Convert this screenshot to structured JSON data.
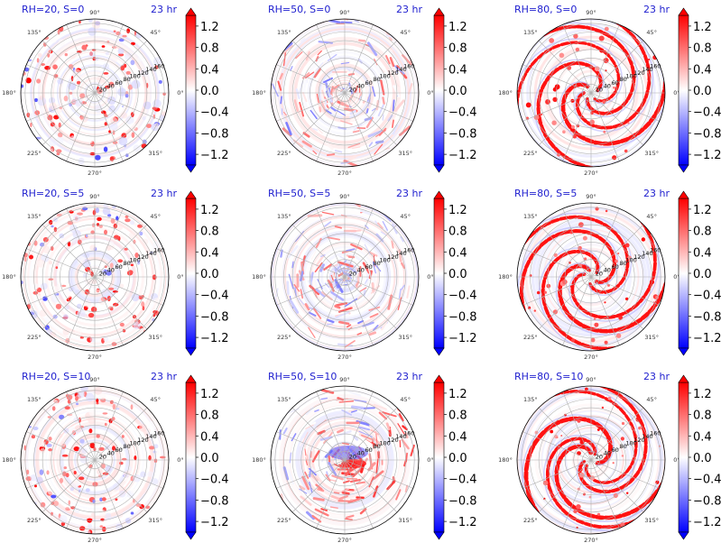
{
  "figure": {
    "label_color": "#0000cc",
    "colormap": [
      "#0000ff",
      "#ffffff",
      "#ff0000"
    ]
  },
  "chart_data": [
    {
      "type": "heatmap",
      "subtype": "polar",
      "left_title": "RH=20, S=0",
      "right_title": "23 hr",
      "pattern": "scattered",
      "theta_ticks": [
        "0°",
        "45°",
        "90°",
        "135°",
        "180°",
        "225°",
        "270°",
        "315°"
      ],
      "r_ticks": [
        "20",
        "40",
        "60",
        "80",
        "100",
        "120",
        "140",
        "160"
      ],
      "colorbar": {
        "ticks": [
          "1.2",
          "0.8",
          "0.4",
          "0.0",
          "−0.4",
          "−0.8",
          "−1.2"
        ],
        "range": [
          -1.4,
          1.4
        ],
        "extend": "both"
      }
    },
    {
      "type": "heatmap",
      "subtype": "polar",
      "left_title": "RH=50, S=0",
      "right_title": "23 hr",
      "pattern": "mixed",
      "theta_ticks": [
        "0°",
        "45°",
        "90°",
        "135°",
        "180°",
        "225°",
        "270°",
        "315°"
      ],
      "r_ticks": [
        "20",
        "40",
        "60",
        "80",
        "100",
        "120",
        "140",
        "160"
      ],
      "colorbar": {
        "ticks": [
          "1.2",
          "0.8",
          "0.4",
          "0.0",
          "−0.4",
          "−0.8",
          "−1.2"
        ],
        "range": [
          -1.4,
          1.4
        ],
        "extend": "both"
      }
    },
    {
      "type": "heatmap",
      "subtype": "polar",
      "left_title": "RH=80, S=0",
      "right_title": "23 hr",
      "pattern": "spiral",
      "theta_ticks": [
        "0°",
        "45°",
        "90°",
        "135°",
        "180°",
        "225°",
        "270°",
        "315°"
      ],
      "r_ticks": [
        "20",
        "40",
        "60",
        "80",
        "100",
        "120",
        "140",
        "160"
      ],
      "colorbar": {
        "ticks": [
          "1.2",
          "0.8",
          "0.4",
          "0.0",
          "−0.4",
          "−0.8",
          "−1.2"
        ],
        "range": [
          -1.4,
          1.4
        ],
        "extend": "both"
      }
    },
    {
      "type": "heatmap",
      "subtype": "polar",
      "left_title": "RH=20, S=5",
      "right_title": "23 hr",
      "pattern": "scattered",
      "theta_ticks": [
        "0°",
        "45°",
        "90°",
        "135°",
        "180°",
        "225°",
        "270°",
        "315°"
      ],
      "r_ticks": [
        "20",
        "40",
        "60",
        "80",
        "100",
        "120",
        "140",
        "160"
      ],
      "colorbar": {
        "ticks": [
          "1.2",
          "0.8",
          "0.4",
          "0.0",
          "−0.4",
          "−0.8",
          "−1.2"
        ],
        "range": [
          -1.4,
          1.4
        ],
        "extend": "both"
      }
    },
    {
      "type": "heatmap",
      "subtype": "polar",
      "left_title": "RH=50, S=5",
      "right_title": "23 hr",
      "pattern": "mixed",
      "theta_ticks": [
        "0°",
        "45°",
        "90°",
        "135°",
        "180°",
        "225°",
        "270°",
        "315°"
      ],
      "r_ticks": [
        "20",
        "40",
        "60",
        "80",
        "100",
        "120",
        "140",
        "160"
      ],
      "colorbar": {
        "ticks": [
          "1.2",
          "0.8",
          "0.4",
          "0.0",
          "−0.4",
          "−0.8",
          "−1.2"
        ],
        "range": [
          -1.4,
          1.4
        ],
        "extend": "both"
      }
    },
    {
      "type": "heatmap",
      "subtype": "polar",
      "left_title": "RH=80, S=5",
      "right_title": "23 hr",
      "pattern": "spiral",
      "theta_ticks": [
        "0°",
        "45°",
        "90°",
        "135°",
        "180°",
        "225°",
        "270°",
        "315°"
      ],
      "r_ticks": [
        "20",
        "40",
        "60",
        "80",
        "100",
        "120",
        "140",
        "160"
      ],
      "colorbar": {
        "ticks": [
          "1.2",
          "0.8",
          "0.4",
          "0.0",
          "−0.4",
          "−0.8",
          "−1.2"
        ],
        "range": [
          -1.4,
          1.4
        ],
        "extend": "both"
      }
    },
    {
      "type": "heatmap",
      "subtype": "polar",
      "left_title": "RH=20, S=10",
      "right_title": "23 hr",
      "pattern": "scattered",
      "theta_ticks": [
        "0°",
        "45°",
        "90°",
        "135°",
        "180°",
        "225°",
        "270°",
        "315°"
      ],
      "r_ticks": [
        "20",
        "40",
        "60",
        "80",
        "100",
        "120",
        "140",
        "160"
      ],
      "colorbar": {
        "ticks": [
          "1.2",
          "0.8",
          "0.4",
          "0.0",
          "−0.4",
          "−0.8",
          "−1.2"
        ],
        "range": [
          -1.4,
          1.4
        ],
        "extend": "both"
      }
    },
    {
      "type": "heatmap",
      "subtype": "polar",
      "left_title": "RH=50, S=10",
      "right_title": "23 hr",
      "pattern": "sheared",
      "theta_ticks": [
        "0°",
        "45°",
        "90°",
        "135°",
        "180°",
        "225°",
        "270°",
        "315°"
      ],
      "r_ticks": [
        "20",
        "40",
        "60",
        "80",
        "100",
        "120",
        "140",
        "160"
      ],
      "colorbar": {
        "ticks": [
          "1.2",
          "0.8",
          "0.4",
          "0.0",
          "−0.4",
          "−0.8",
          "−1.2"
        ],
        "range": [
          -1.4,
          1.4
        ],
        "extend": "both"
      }
    },
    {
      "type": "heatmap",
      "subtype": "polar",
      "left_title": "RH=80, S=10",
      "right_title": "23 hr",
      "pattern": "spiral",
      "theta_ticks": [
        "0°",
        "45°",
        "90°",
        "135°",
        "180°",
        "225°",
        "270°",
        "315°"
      ],
      "r_ticks": [
        "20",
        "40",
        "60",
        "80",
        "100",
        "120",
        "140",
        "160"
      ],
      "colorbar": {
        "ticks": [
          "1.2",
          "0.8",
          "0.4",
          "0.0",
          "−0.4",
          "−0.8",
          "−1.2"
        ],
        "range": [
          -1.4,
          1.4
        ],
        "extend": "both"
      }
    }
  ]
}
